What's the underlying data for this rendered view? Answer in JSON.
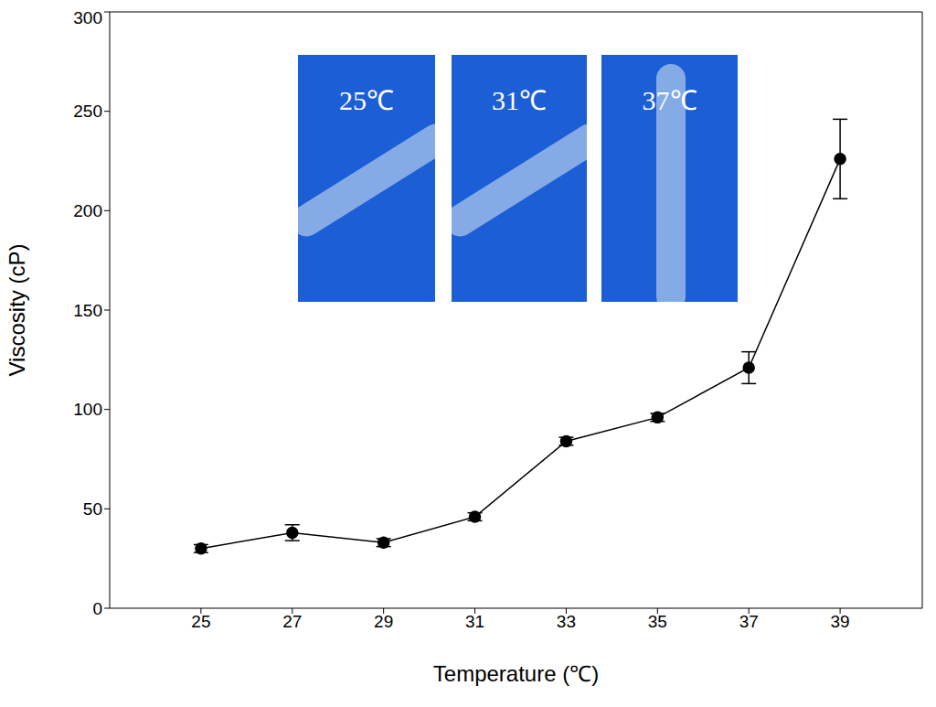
{
  "chart_data": {
    "type": "line",
    "x_label": "Temperature (℃)",
    "y_label": "Viscosity (cP)",
    "annotations": [
      "25℃",
      "31℃",
      "37℃"
    ],
    "x": [
      25,
      27,
      29,
      31,
      33,
      35,
      37,
      39
    ],
    "series": [
      {
        "name": "Viscosity",
        "color": "#000000",
        "marker": "circle",
        "line_style": "solid",
        "values": [
          30,
          38,
          33,
          46,
          84,
          96,
          121,
          226
        ],
        "error": [
          2,
          4,
          2,
          2,
          2,
          2,
          8,
          20
        ]
      }
    ],
    "xlim": [
      23,
      40.8
    ],
    "xticks": [
      25,
      27,
      29,
      31,
      33,
      35,
      37,
      39
    ],
    "ylim": [
      0,
      300
    ],
    "yticks": [
      0,
      50,
      100,
      150,
      200,
      250,
      300
    ],
    "grid": false
  }
}
